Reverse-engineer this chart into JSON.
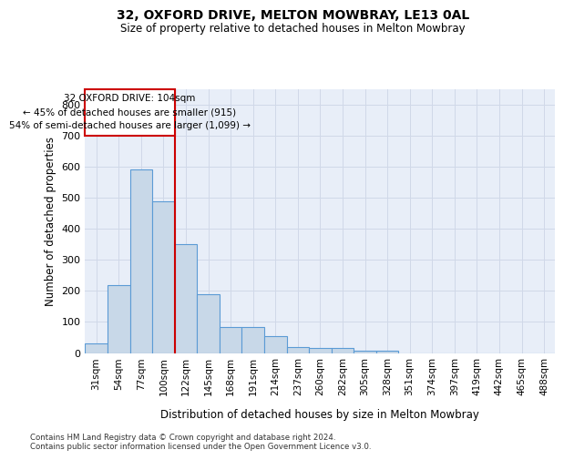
{
  "title1": "32, OXFORD DRIVE, MELTON MOWBRAY, LE13 0AL",
  "title2": "Size of property relative to detached houses in Melton Mowbray",
  "xlabel": "Distribution of detached houses by size in Melton Mowbray",
  "ylabel": "Number of detached properties",
  "bar_values": [
    30,
    218,
    590,
    488,
    350,
    190,
    85,
    85,
    53,
    20,
    15,
    15,
    8,
    8,
    0,
    0,
    0,
    0,
    0,
    0,
    0
  ],
  "bar_labels": [
    "31sqm",
    "54sqm",
    "77sqm",
    "100sqm",
    "122sqm",
    "145sqm",
    "168sqm",
    "191sqm",
    "214sqm",
    "237sqm",
    "260sqm",
    "282sqm",
    "305sqm",
    "328sqm",
    "351sqm",
    "374sqm",
    "397sqm",
    "419sqm",
    "442sqm",
    "465sqm",
    "488sqm"
  ],
  "bar_color": "#c8d8e8",
  "bar_edge_color": "#5b9bd5",
  "annotation_line1": "32 OXFORD DRIVE: 104sqm",
  "annotation_line2": "← 45% of detached houses are smaller (915)",
  "annotation_line3": "54% of semi-detached houses are larger (1,099) →",
  "vline_color": "#cc0000",
  "annotation_box_color": "#cc0000",
  "ylim_max": 850,
  "yticks": [
    0,
    100,
    200,
    300,
    400,
    500,
    600,
    700,
    800
  ],
  "grid_color": "#d0d8e8",
  "background_color": "#e8eef8",
  "footer1": "Contains HM Land Registry data © Crown copyright and database right 2024.",
  "footer2": "Contains public sector information licensed under the Open Government Licence v3.0."
}
